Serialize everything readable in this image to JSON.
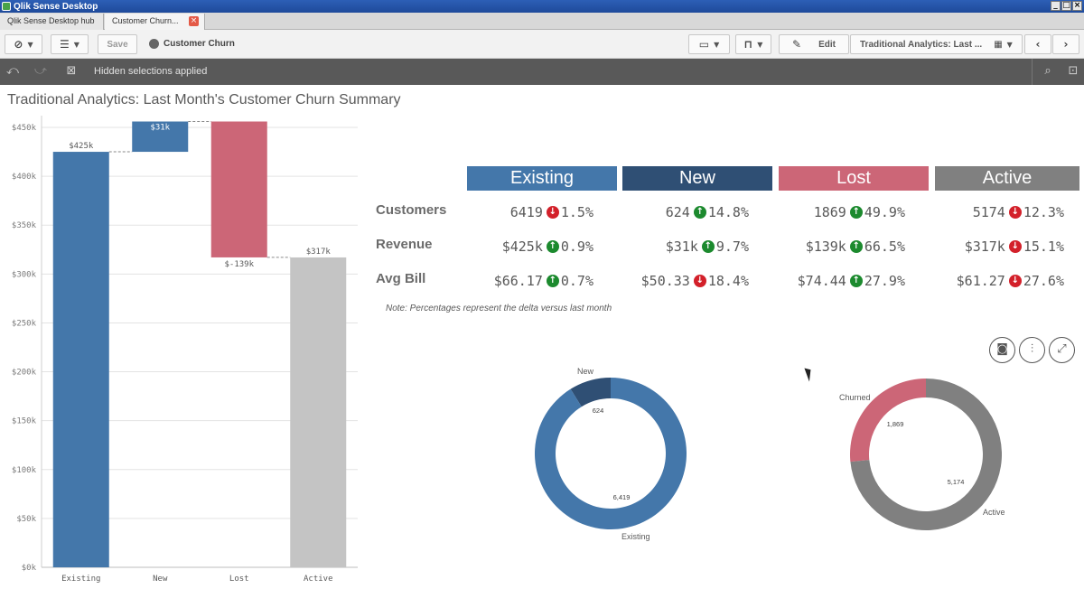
{
  "window": {
    "title": "Qlik Sense Desktop",
    "controls": [
      "_",
      "□",
      "×"
    ]
  },
  "tabs": [
    {
      "label": "Qlik Sense Desktop hub"
    },
    {
      "label": "Customer Churn..."
    }
  ],
  "toolbar": {
    "save_label": "Save",
    "app_name": "Customer Churn",
    "edit_label": "Edit",
    "sheet_selector": "Traditional Analytics: Last ..."
  },
  "selections": {
    "text": "Hidden selections applied"
  },
  "sheet": {
    "title": "Traditional Analytics: Last Month's Customer Churn Summary"
  },
  "colors": {
    "existing": "#4477aa",
    "new": "#2f4f74",
    "lost": "#cc6677",
    "active": "#808080",
    "active_bar": "#c4c4c4"
  },
  "kpi": {
    "headers": [
      "Existing",
      "New",
      "Lost",
      "Active"
    ],
    "rows": [
      {
        "label": "Customers",
        "cells": [
          {
            "value": "6419",
            "dir": "down",
            "delta": "1.5%"
          },
          {
            "value": "624",
            "dir": "up",
            "delta": "14.8%"
          },
          {
            "value": "1869",
            "dir": "up",
            "delta": "49.9%"
          },
          {
            "value": "5174",
            "dir": "down",
            "delta": "12.3%"
          }
        ]
      },
      {
        "label": "Revenue",
        "cells": [
          {
            "value": "$425k",
            "dir": "up",
            "delta": "0.9%"
          },
          {
            "value": "$31k",
            "dir": "up",
            "delta": "9.7%"
          },
          {
            "value": "$139k",
            "dir": "up",
            "delta": "66.5%"
          },
          {
            "value": "$317k",
            "dir": "down",
            "delta": "15.1%"
          }
        ]
      },
      {
        "label": "Avg Bill",
        "cells": [
          {
            "value": "$66.17",
            "dir": "up",
            "delta": "0.7%"
          },
          {
            "value": "$50.33",
            "dir": "down",
            "delta": "18.4%"
          },
          {
            "value": "$74.44",
            "dir": "up",
            "delta": "27.9%"
          },
          {
            "value": "$61.27",
            "dir": "down",
            "delta": "27.6%"
          }
        ]
      }
    ],
    "note": "Note: Percentages represent the delta versus last month"
  },
  "chart_data": [
    {
      "type": "bar",
      "subtype": "waterfall",
      "categories": [
        "Existing",
        "New",
        "Lost",
        "Active"
      ],
      "values": [
        425,
        31,
        -139,
        317
      ],
      "data_labels": [
        "$425k",
        "$31k",
        "$-139k",
        "$317k"
      ],
      "ylim": [
        0,
        450
      ],
      "yticks": [
        0,
        50,
        100,
        150,
        200,
        250,
        300,
        350,
        400,
        450
      ],
      "ytick_labels": [
        "$0k",
        "$50k",
        "$100k",
        "$150k",
        "$200k",
        "$250k",
        "$300k",
        "$350k",
        "$400k",
        "$450k"
      ],
      "grid": true
    },
    {
      "type": "pie",
      "subtype": "donut",
      "labels": [
        "New",
        "Existing"
      ],
      "values": [
        624,
        6419
      ],
      "value_labels": [
        "624",
        "6,419"
      ]
    },
    {
      "type": "pie",
      "subtype": "donut",
      "labels": [
        "Churned",
        "Active"
      ],
      "values": [
        1869,
        5174
      ],
      "value_labels": [
        "1,869",
        "5,174"
      ]
    }
  ]
}
